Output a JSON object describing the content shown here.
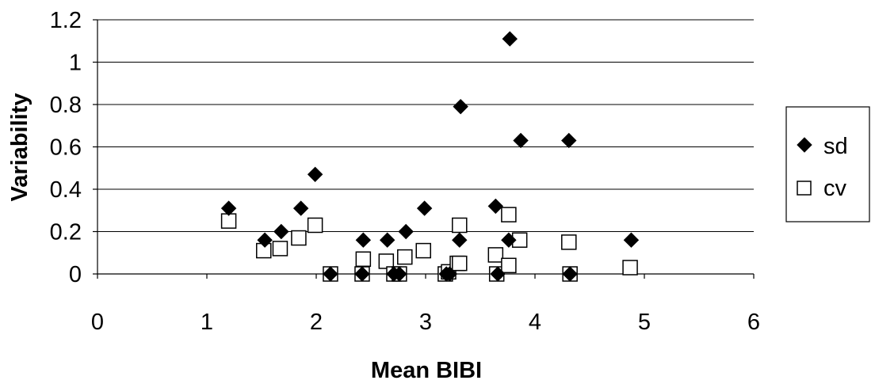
{
  "chart_data": {
    "type": "scatter",
    "title": "",
    "xlabel": "Mean BIBI",
    "ylabel": "Variability",
    "xlim": [
      0,
      6
    ],
    "ylim": [
      0,
      1.2
    ],
    "x_ticks": [
      "0",
      "1",
      "2",
      "3",
      "4",
      "5",
      "6"
    ],
    "y_ticks": [
      "0",
      "0.2",
      "0.4",
      "0.6",
      "0.8",
      "1",
      "1.2"
    ],
    "grid": "horizontal",
    "legend_position": "right",
    "series": [
      {
        "name": "sd",
        "marker": "diamond-filled",
        "color": "#000000",
        "points": [
          [
            1.2,
            0.31
          ],
          [
            1.53,
            0.16
          ],
          [
            1.68,
            0.2
          ],
          [
            1.86,
            0.31
          ],
          [
            1.99,
            0.47
          ],
          [
            2.13,
            0.0
          ],
          [
            2.42,
            0.0
          ],
          [
            2.43,
            0.16
          ],
          [
            2.65,
            0.16
          ],
          [
            2.71,
            0.0
          ],
          [
            2.76,
            0.0
          ],
          [
            2.82,
            0.2
          ],
          [
            2.99,
            0.31
          ],
          [
            3.19,
            0.0
          ],
          [
            3.22,
            0.0
          ],
          [
            3.31,
            0.16
          ],
          [
            3.32,
            0.79
          ],
          [
            3.64,
            0.32
          ],
          [
            3.66,
            0.0
          ],
          [
            3.76,
            0.16
          ],
          [
            3.77,
            1.11
          ],
          [
            3.87,
            0.63
          ],
          [
            4.31,
            0.63
          ],
          [
            4.32,
            0.0
          ],
          [
            4.88,
            0.16
          ]
        ]
      },
      {
        "name": "cv",
        "marker": "square-open",
        "color": "#000000",
        "points": [
          [
            1.2,
            0.25
          ],
          [
            1.52,
            0.11
          ],
          [
            1.67,
            0.12
          ],
          [
            1.84,
            0.17
          ],
          [
            1.99,
            0.23
          ],
          [
            2.13,
            0.0
          ],
          [
            2.42,
            0.0
          ],
          [
            2.43,
            0.07
          ],
          [
            2.64,
            0.06
          ],
          [
            2.71,
            0.0
          ],
          [
            2.76,
            0.0
          ],
          [
            2.81,
            0.08
          ],
          [
            2.98,
            0.11
          ],
          [
            3.18,
            0.0
          ],
          [
            3.21,
            0.01
          ],
          [
            3.29,
            0.05
          ],
          [
            3.31,
            0.05
          ],
          [
            3.31,
            0.23
          ],
          [
            3.64,
            0.09
          ],
          [
            3.65,
            0.0
          ],
          [
            3.76,
            0.04
          ],
          [
            3.76,
            0.28
          ],
          [
            3.86,
            0.16
          ],
          [
            4.31,
            0.15
          ],
          [
            4.32,
            0.0
          ],
          [
            4.87,
            0.03
          ]
        ]
      }
    ]
  }
}
